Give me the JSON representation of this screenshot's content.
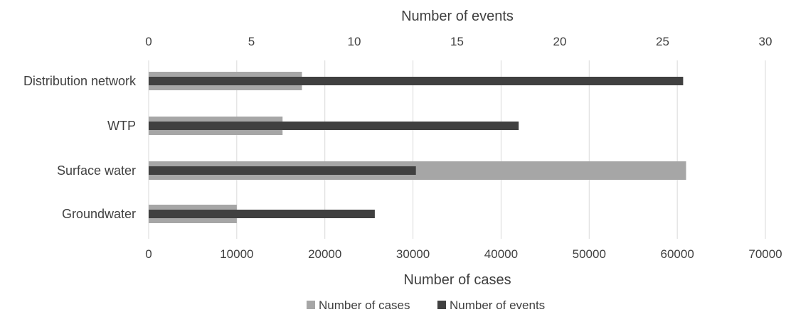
{
  "chart_data": {
    "type": "bar",
    "orientation": "horizontal",
    "categories": [
      "Distribution network",
      "WTP",
      "Surface water",
      "Groundwater"
    ],
    "series": [
      {
        "name": "Number of cases",
        "axis": "bottom",
        "color": "#a6a6a6",
        "values": [
          17400,
          15200,
          61000,
          10000
        ]
      },
      {
        "name": "Number of events",
        "axis": "top",
        "color": "#404040",
        "values": [
          26,
          18,
          13,
          11
        ]
      }
    ],
    "x_bottom": {
      "label": "Number of cases",
      "range": [
        0,
        70000
      ],
      "ticks": [
        "0",
        "10000",
        "20000",
        "30000",
        "40000",
        "50000",
        "60000",
        "70000"
      ]
    },
    "x_top": {
      "label": "Number of events",
      "range": [
        0,
        30
      ],
      "ticks": [
        "0",
        "5",
        "10",
        "15",
        "20",
        "25",
        "30"
      ]
    },
    "grid": true,
    "legend": {
      "position": "bottom",
      "entries": [
        "Number of cases",
        "Number of events"
      ]
    }
  }
}
